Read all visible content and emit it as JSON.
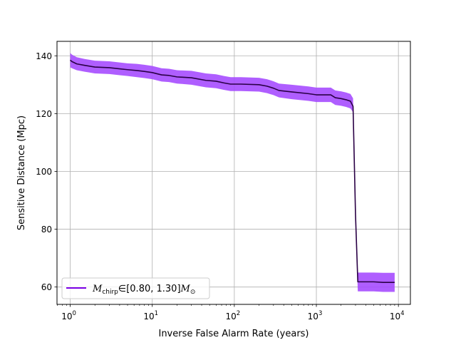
{
  "chart_data": {
    "type": "line",
    "title": "",
    "xlabel": "Inverse False Alarm Rate (years)",
    "ylabel": "Sensitive Distance (Mpc)",
    "xscale": "log",
    "xlim": [
      0.69,
      14000
    ],
    "ylim": [
      54,
      145
    ],
    "grid": true,
    "legend_position": "lower-left",
    "x_ticks": [
      {
        "value": 1,
        "base": "10",
        "exp": "0"
      },
      {
        "value": 10,
        "base": "10",
        "exp": "1"
      },
      {
        "value": 100,
        "base": "10",
        "exp": "2"
      },
      {
        "value": 1000,
        "base": "10",
        "exp": "3"
      },
      {
        "value": 10000,
        "base": "10",
        "exp": "4"
      }
    ],
    "y_ticks": [
      {
        "value": 60,
        "label": "60"
      },
      {
        "value": 80,
        "label": "80"
      },
      {
        "value": 100,
        "label": "100"
      },
      {
        "value": 120,
        "label": "120"
      },
      {
        "value": 140,
        "label": "140"
      }
    ],
    "series": [
      {
        "legend": {
          "symbol": "M",
          "subscript": "chirp",
          "range": "∈[0.80, 1.30]",
          "unit": "M",
          "unit_subscript": "⊙"
        },
        "color": "#7a00e6",
        "line_color": "#2a0045",
        "band_color": "#a64dff",
        "x": [
          1.0,
          1.05,
          1.2,
          1.5,
          2.0,
          3.0,
          4.0,
          5.0,
          6.5,
          8.0,
          10.0,
          13.0,
          16.0,
          20.0,
          30.0,
          45.0,
          60.0,
          75.0,
          90.0,
          120.0,
          200.0,
          250.0,
          300.0,
          350.0,
          500.0,
          800.0,
          1000.0,
          1500.0,
          1700.0,
          2000.0,
          2300.0,
          2600.0,
          2800.0,
          3000.0,
          3200.0,
          5000.0,
          6500.0,
          9000.0
        ],
        "y": [
          138.5,
          138.0,
          137.2,
          136.7,
          136.1,
          135.9,
          135.5,
          135.2,
          134.9,
          134.6,
          134.2,
          133.4,
          133.2,
          132.7,
          132.4,
          131.5,
          131.2,
          130.6,
          130.2,
          130.2,
          130.0,
          129.5,
          128.8,
          128.0,
          127.5,
          126.9,
          126.5,
          126.5,
          125.5,
          125.2,
          124.8,
          124.3,
          122.5,
          85.0,
          61.8,
          61.8,
          61.6,
          61.6
        ],
        "lower": [
          136.0,
          135.7,
          135.0,
          134.5,
          133.9,
          133.7,
          133.3,
          133.0,
          132.6,
          132.3,
          131.9,
          131.1,
          130.9,
          130.4,
          130.0,
          129.1,
          128.8,
          128.2,
          127.8,
          127.8,
          127.6,
          127.1,
          126.4,
          125.6,
          125.0,
          124.4,
          124.0,
          124.0,
          123.0,
          122.7,
          122.3,
          121.8,
          120.5,
          82.0,
          58.5,
          58.5,
          58.3,
          58.3
        ],
        "upper": [
          141.0,
          140.4,
          139.5,
          138.9,
          138.3,
          138.1,
          137.7,
          137.4,
          137.2,
          136.9,
          136.5,
          135.7,
          135.5,
          135.0,
          134.8,
          133.9,
          133.6,
          133.0,
          132.6,
          132.6,
          132.4,
          131.9,
          131.2,
          130.4,
          130.0,
          129.4,
          129.0,
          129.0,
          128.0,
          127.7,
          127.3,
          126.8,
          125.3,
          88.0,
          65.0,
          65.0,
          64.9,
          64.9
        ]
      }
    ]
  }
}
